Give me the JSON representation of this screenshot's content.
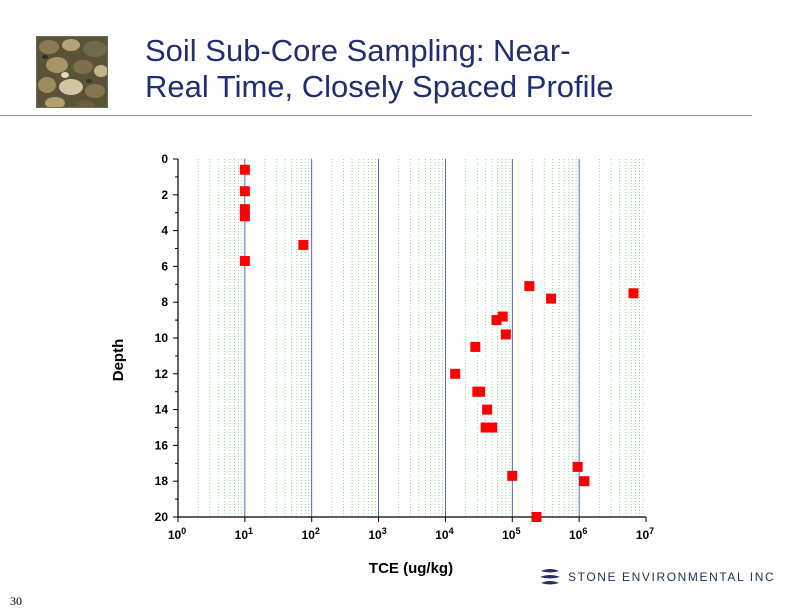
{
  "slide": {
    "title_line1": "Soil Sub-Core Sampling: Near-",
    "title_line2": "Real Time, Closely Spaced Profile",
    "page_number": "30",
    "logo_text": "Stone Environmental Inc",
    "thumbnail_icon": "rock-thumbnail-icon",
    "logo_icon": "stone-logo-icon"
  },
  "colors": {
    "title": "#1f2f6f",
    "marker": "#ff0000",
    "major_grid": "#2b3fb0",
    "minor_grid": "#6fd06f"
  },
  "chart_data": {
    "type": "scatter",
    "title": "Soil Sub-Core Sampling: Near-Real Time, Closely Spaced Profile",
    "xlabel": "TCE (ug/kg)",
    "ylabel": "Depth",
    "xscale": "log",
    "xlim": [
      1,
      10000000
    ],
    "ylim": [
      20,
      0
    ],
    "y_inverted": true,
    "grid": true,
    "x_tick_labels": [
      {
        "base": "10",
        "exp": "0"
      },
      {
        "base": "10",
        "exp": "1"
      },
      {
        "base": "10",
        "exp": "2"
      },
      {
        "base": "10",
        "exp": "3"
      },
      {
        "base": "10",
        "exp": "4"
      },
      {
        "base": "10",
        "exp": "5"
      },
      {
        "base": "10",
        "exp": "6"
      },
      {
        "base": "10",
        "exp": "7"
      }
    ],
    "y_ticks": [
      0,
      2,
      4,
      6,
      8,
      10,
      12,
      14,
      16,
      18,
      20
    ],
    "series": [
      {
        "name": "TCE",
        "points": [
          {
            "x": 10,
            "y": 0.6
          },
          {
            "x": 10,
            "y": 1.8
          },
          {
            "x": 10,
            "y": 2.8
          },
          {
            "x": 10,
            "y": 3.2
          },
          {
            "x": 10,
            "y": 5.7
          },
          {
            "x": 75,
            "y": 4.8
          },
          {
            "x": 14000,
            "y": 12.0
          },
          {
            "x": 28000,
            "y": 10.5
          },
          {
            "x": 30000,
            "y": 13.0
          },
          {
            "x": 33000,
            "y": 13.0
          },
          {
            "x": 42000,
            "y": 14.0
          },
          {
            "x": 40000,
            "y": 15.0
          },
          {
            "x": 50000,
            "y": 15.0
          },
          {
            "x": 58000,
            "y": 9.0
          },
          {
            "x": 72000,
            "y": 8.8
          },
          {
            "x": 80000,
            "y": 9.8
          },
          {
            "x": 100000,
            "y": 17.7
          },
          {
            "x": 180000,
            "y": 7.1
          },
          {
            "x": 230000,
            "y": 20.0
          },
          {
            "x": 380000,
            "y": 7.8
          },
          {
            "x": 950000,
            "y": 17.2
          },
          {
            "x": 1200000,
            "y": 18.0
          },
          {
            "x": 6500000,
            "y": 7.5
          }
        ]
      }
    ]
  }
}
